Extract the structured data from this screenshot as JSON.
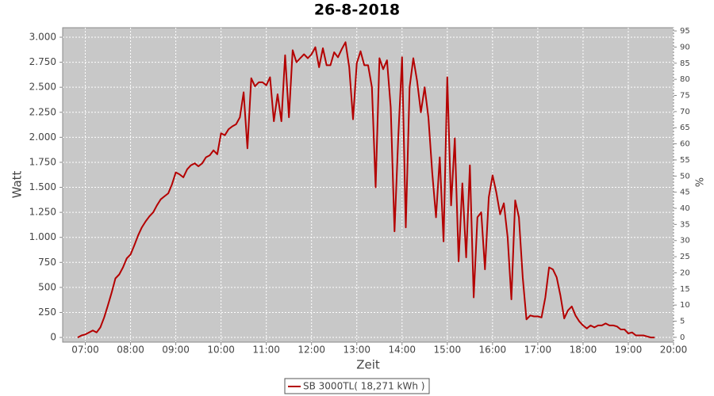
{
  "chart_data": {
    "type": "line",
    "title": "26-8-2018",
    "xlabel": "Zeit",
    "ylabel": "Watt",
    "y2label": "%",
    "x": [
      "06:50",
      "06:55",
      "07:00",
      "07:05",
      "07:10",
      "07:15",
      "07:20",
      "07:25",
      "07:30",
      "07:35",
      "07:40",
      "07:45",
      "07:50",
      "07:55",
      "08:00",
      "08:05",
      "08:10",
      "08:15",
      "08:20",
      "08:25",
      "08:30",
      "08:35",
      "08:40",
      "08:45",
      "08:50",
      "08:55",
      "09:00",
      "09:05",
      "09:10",
      "09:15",
      "09:20",
      "09:25",
      "09:30",
      "09:35",
      "09:40",
      "09:45",
      "09:50",
      "09:55",
      "10:00",
      "10:05",
      "10:10",
      "10:15",
      "10:20",
      "10:25",
      "10:30",
      "10:35",
      "10:40",
      "10:45",
      "10:50",
      "10:55",
      "11:00",
      "11:05",
      "11:10",
      "11:15",
      "11:20",
      "11:25",
      "11:30",
      "11:35",
      "11:40",
      "11:45",
      "11:50",
      "11:55",
      "12:00",
      "12:05",
      "12:10",
      "12:15",
      "12:20",
      "12:25",
      "12:30",
      "12:35",
      "12:40",
      "12:45",
      "12:50",
      "12:55",
      "13:00",
      "13:05",
      "13:10",
      "13:15",
      "13:20",
      "13:25",
      "13:30",
      "13:35",
      "13:40",
      "13:45",
      "13:50",
      "13:55",
      "14:00",
      "14:05",
      "14:10",
      "14:15",
      "14:20",
      "14:25",
      "14:30",
      "14:35",
      "14:40",
      "14:45",
      "14:50",
      "14:55",
      "15:00",
      "15:05",
      "15:10",
      "15:15",
      "15:20",
      "15:25",
      "15:30",
      "15:35",
      "15:40",
      "15:45",
      "15:50",
      "15:55",
      "16:00",
      "16:05",
      "16:10",
      "16:15",
      "16:20",
      "16:25",
      "16:30",
      "16:35",
      "16:40",
      "16:45",
      "16:50",
      "16:55",
      "17:00",
      "17:05",
      "17:10",
      "17:15",
      "17:20",
      "17:25",
      "17:30",
      "17:35",
      "17:40",
      "17:45",
      "17:50",
      "17:55",
      "18:00",
      "18:05",
      "18:10",
      "18:15",
      "18:20",
      "18:25",
      "18:30",
      "18:35",
      "18:40",
      "18:45",
      "18:50",
      "18:55",
      "19:00",
      "19:05",
      "19:10",
      "19:15",
      "19:20",
      "19:25",
      "19:30",
      "19:35"
    ],
    "series": [
      {
        "name": "SB 3000TL( 18,271 kWh )",
        "color": "#b40000",
        "values": [
          0,
          20,
          30,
          50,
          70,
          50,
          100,
          200,
          320,
          450,
          590,
          630,
          700,
          790,
          830,
          920,
          1020,
          1100,
          1160,
          1210,
          1250,
          1320,
          1380,
          1410,
          1440,
          1530,
          1650,
          1630,
          1600,
          1680,
          1720,
          1740,
          1710,
          1740,
          1800,
          1820,
          1870,
          1830,
          2040,
          2020,
          2080,
          2110,
          2130,
          2200,
          2450,
          1890,
          2590,
          2510,
          2550,
          2550,
          2520,
          2600,
          2160,
          2430,
          2160,
          2820,
          2200,
          2870,
          2750,
          2790,
          2830,
          2790,
          2830,
          2900,
          2700,
          2890,
          2720,
          2720,
          2850,
          2800,
          2880,
          2950,
          2700,
          2180,
          2740,
          2860,
          2720,
          2720,
          2500,
          1500,
          2790,
          2680,
          2770,
          2300,
          1060,
          2000,
          2800,
          1100,
          2500,
          2790,
          2560,
          2250,
          2500,
          2200,
          1650,
          1200,
          1800,
          960,
          2600,
          1320,
          1990,
          760,
          1540,
          800,
          1720,
          400,
          1200,
          1250,
          680,
          1400,
          1620,
          1450,
          1230,
          1340,
          1000,
          380,
          1370,
          1200,
          600,
          180,
          220,
          210,
          210,
          200,
          400,
          700,
          680,
          600,
          420,
          190,
          270,
          310,
          220,
          160,
          120,
          90,
          120,
          100,
          120,
          120,
          140,
          120,
          120,
          110,
          80,
          80,
          40,
          50,
          20,
          20,
          20,
          10,
          0,
          0
        ]
      }
    ],
    "xlim": [
      "06:30",
      "20:00"
    ],
    "xticks": [
      "07:00",
      "08:00",
      "09:00",
      "10:00",
      "11:00",
      "12:00",
      "13:00",
      "14:00",
      "15:00",
      "16:00",
      "17:00",
      "18:00",
      "19:00",
      "20:00"
    ],
    "ylim": [
      -47,
      3095
    ],
    "yticks": [
      0,
      250,
      500,
      750,
      {
        "value": 1000,
        "label": "1.000"
      },
      {
        "value": 1250,
        "label": "1.250"
      },
      {
        "value": 1500,
        "label": "1.500"
      },
      {
        "value": 1750,
        "label": "1.750"
      },
      {
        "value": 2000,
        "label": "2.000"
      },
      {
        "value": 2250,
        "label": "2.250"
      },
      {
        "value": 2500,
        "label": "2.500"
      },
      {
        "value": 2750,
        "label": "2.750"
      },
      {
        "value": 3000,
        "label": "3.000"
      }
    ],
    "y2lim": [
      -1.5,
      96
    ],
    "y2ticks": [
      0,
      5,
      10,
      15,
      20,
      25,
      30,
      35,
      40,
      45,
      50,
      55,
      60,
      65,
      70,
      75,
      80,
      85,
      90,
      95
    ],
    "grid": true
  }
}
